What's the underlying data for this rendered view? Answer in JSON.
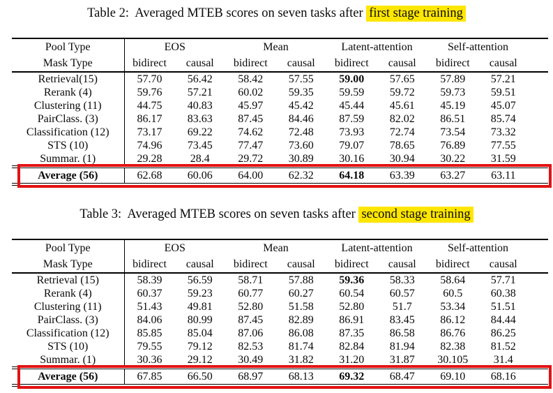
{
  "colors": {
    "highlight_yellow": "#ffe600",
    "annotation_red": "#e31212",
    "text": "#0a0a0a",
    "background": "#ffffff"
  },
  "tables": [
    {
      "caption": {
        "prefix": "Table 2:  Averaged MTEB scores on seven tasks after ",
        "highlighted": "first stage training"
      },
      "header": {
        "row1_label": "Pool Type",
        "row2_label": "Mask Type",
        "groups": [
          "EOS",
          "Mean",
          "Latent-attention",
          "Self-attention"
        ],
        "subcolumns": [
          "bidirect",
          "causal"
        ]
      },
      "rows": [
        {
          "label": "Retrieval(15)",
          "values": [
            "57.70",
            "56.42",
            "58.42",
            "57.55",
            "59.00",
            "57.65",
            "57.89",
            "57.21"
          ],
          "bold": [
            4
          ]
        },
        {
          "label": "Rerank (4)",
          "values": [
            "59.76",
            "57.21",
            "60.02",
            "59.35",
            "59.59",
            "59.72",
            "59.73",
            "59.51"
          ],
          "bold": []
        },
        {
          "label": "Clustering (11)",
          "values": [
            "44.75",
            "40.83",
            "45.97",
            "45.42",
            "45.44",
            "45.61",
            "45.19",
            "45.07"
          ],
          "bold": []
        },
        {
          "label": "PairClass. (3)",
          "values": [
            "86.17",
            "83.63",
            "87.45",
            "84.46",
            "87.59",
            "82.02",
            "86.51",
            "85.74"
          ],
          "bold": []
        },
        {
          "label": "Classification (12)",
          "values": [
            "73.17",
            "69.22",
            "74.62",
            "72.48",
            "73.93",
            "72.74",
            "73.54",
            "73.32"
          ],
          "bold": []
        },
        {
          "label": "STS (10)",
          "values": [
            "74.96",
            "73.45",
            "77.47",
            "73.60",
            "79.07",
            "78.65",
            "76.89",
            "77.55"
          ],
          "bold": []
        },
        {
          "label": "Summar. (1)",
          "values": [
            "29.28",
            "28.4",
            "29.72",
            "30.89",
            "30.16",
            "30.94",
            "30.22",
            "31.59"
          ],
          "bold": []
        }
      ],
      "average": {
        "label": "Average (56)",
        "values": [
          "62.68",
          "60.06",
          "64.00",
          "62.32",
          "64.18",
          "63.39",
          "63.27",
          "63.11"
        ],
        "bold": [
          4
        ]
      }
    },
    {
      "caption": {
        "prefix": "Table 3:  Averaged MTEB scores on seven tasks after ",
        "highlighted": "second stage training"
      },
      "header": {
        "row1_label": "Pool Type",
        "row2_label": "Mask Type",
        "groups": [
          "EOS",
          "Mean",
          "Latent-attention",
          "Self-attention"
        ],
        "subcolumns": [
          "bidirect",
          "causal"
        ]
      },
      "rows": [
        {
          "label": "Retrieval (15)",
          "values": [
            "58.39",
            "56.59",
            "58.71",
            "57.88",
            "59.36",
            "58.33",
            "58.64",
            "57.71"
          ],
          "bold": [
            4
          ]
        },
        {
          "label": "Rerank (4)",
          "values": [
            "60.37",
            "59.23",
            "60.77",
            "60.27",
            "60.54",
            "60.57",
            "60.5",
            "60.38"
          ],
          "bold": []
        },
        {
          "label": "Clustering (11)",
          "values": [
            "51.43",
            "49.81",
            "52.80",
            "51.58",
            "52.80",
            "51.7",
            "53.34",
            "51.51"
          ],
          "bold": []
        },
        {
          "label": "PairClass. (3)",
          "values": [
            "84.06",
            "80.99",
            "87.45",
            "82.89",
            "86.91",
            "83.45",
            "86.12",
            "84.44"
          ],
          "bold": []
        },
        {
          "label": "Classification (12)",
          "values": [
            "85.85",
            "85.04",
            "87.06",
            "86.08",
            "87.35",
            "86.58",
            "86.76",
            "86.25"
          ],
          "bold": []
        },
        {
          "label": "STS (10)",
          "values": [
            "79.55",
            "79.12",
            "82.53",
            "81.74",
            "82.84",
            "81.94",
            "82.38",
            "81.52"
          ],
          "bold": []
        },
        {
          "label": "Summar. (1)",
          "values": [
            "30.36",
            "29.12",
            "30.49",
            "31.82",
            "31.20",
            "31.87",
            "30.105",
            "31.4"
          ],
          "bold": []
        }
      ],
      "average": {
        "label": "Average (56)",
        "values": [
          "67.85",
          "66.50",
          "68.97",
          "68.13",
          "69.32",
          "68.47",
          "69.10",
          "68.16"
        ],
        "bold": [
          4
        ]
      }
    }
  ]
}
